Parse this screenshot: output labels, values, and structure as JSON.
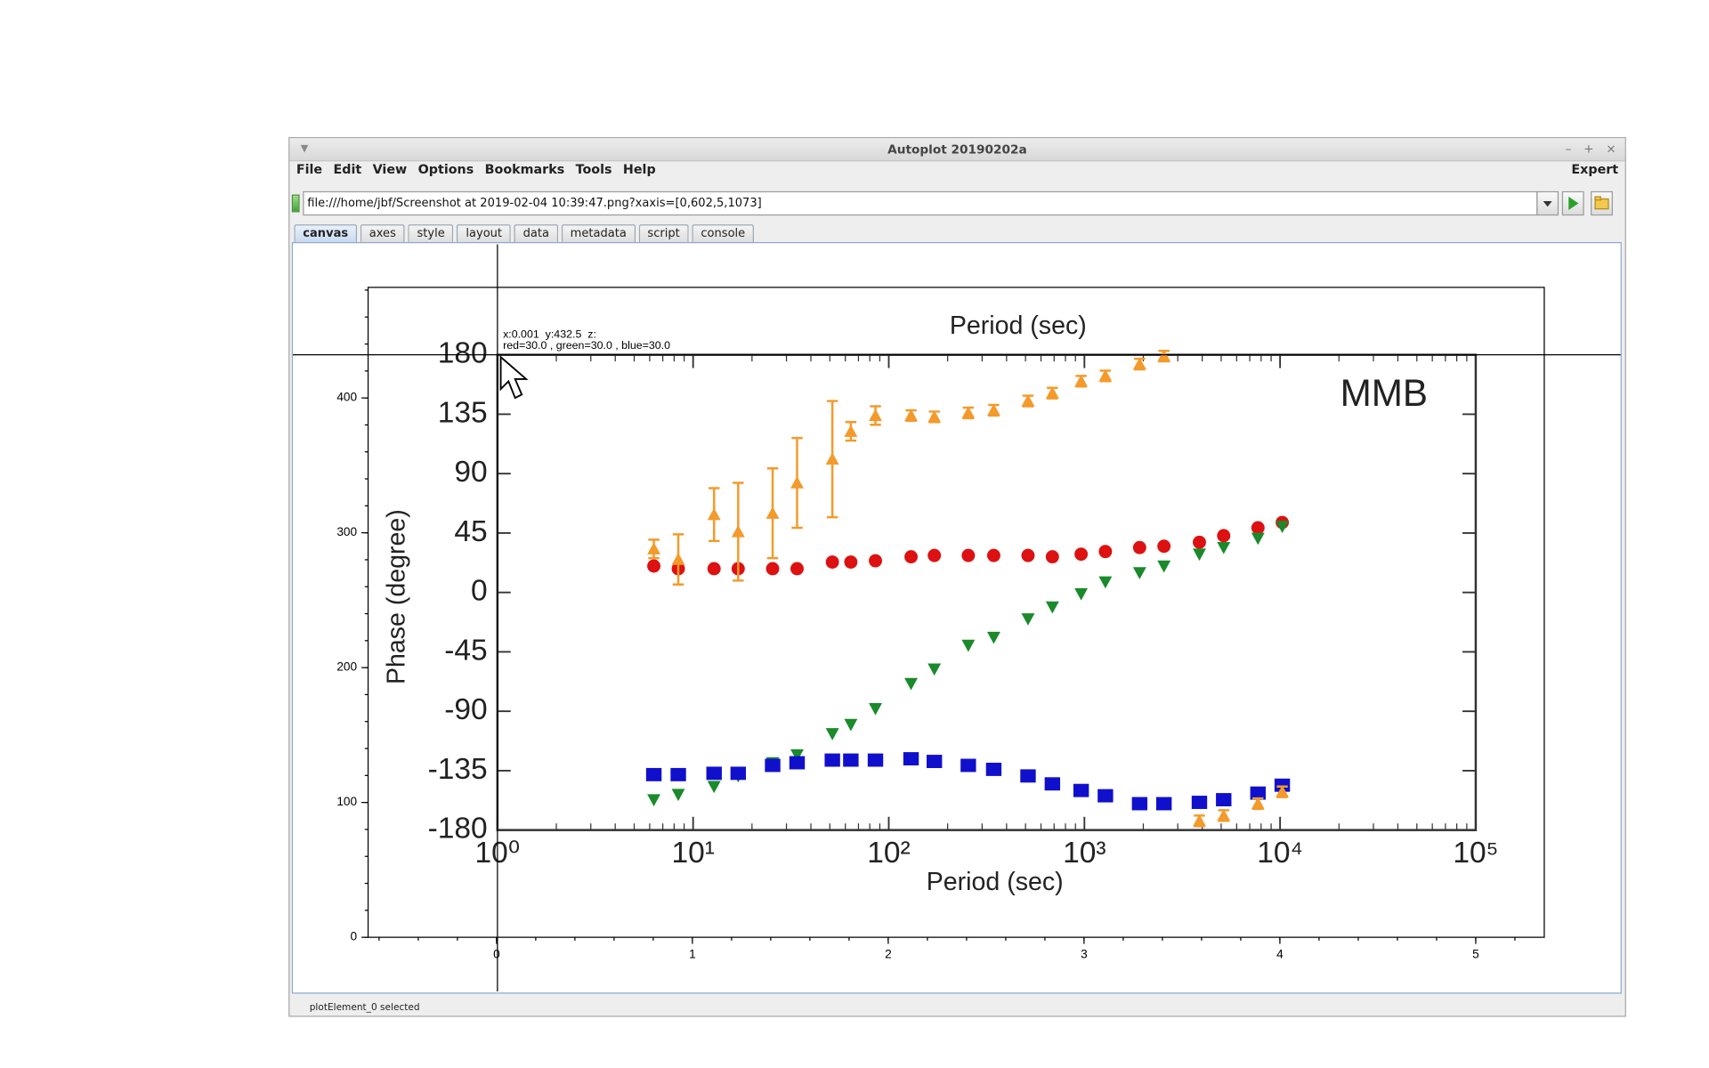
{
  "window": {
    "title": "Autoplot 20190202a",
    "controls": [
      "–",
      "+",
      "×"
    ]
  },
  "menu": [
    "File",
    "Edit",
    "View",
    "Options",
    "Bookmarks",
    "Tools",
    "Help"
  ],
  "mode": "Expert",
  "address": "file:///home/jbf/Screenshot at 2019-02-04 10:39:47.png?xaxis=[0,602,5,1073]",
  "tabs": [
    "canvas",
    "axes",
    "style",
    "layout",
    "data",
    "metadata",
    "script",
    "console"
  ],
  "active_tab": 0,
  "readout": [
    "x:0.001  y:432.5  z:",
    "red=30.0 , green=30.0 , blue=30.0"
  ],
  "status": "plotElement_0 selected",
  "chart_data": [
    {
      "type": "image",
      "xlim": [
        -0.656,
        5.35
      ],
      "ylim": [
        0,
        482
      ],
      "xticks": [
        0,
        1,
        2,
        3,
        4,
        5
      ],
      "yticks": [
        0,
        100,
        200,
        300,
        400
      ]
    },
    {
      "type": "scatter",
      "title": "MMB",
      "xlabel": "Period (sec)",
      "x2label": "Period (sec)",
      "ylabel": "Phase (degree)",
      "log_x": true,
      "xlim": [
        1,
        100000
      ],
      "ylim": [
        -180,
        180
      ],
      "xticks": [
        {
          "value": 1,
          "label": "10⁰"
        },
        {
          "value": 10,
          "label": "10¹"
        },
        {
          "value": 100,
          "label": "10²"
        },
        {
          "value": 1000,
          "label": "10³"
        },
        {
          "value": 10000,
          "label": "10⁴"
        },
        {
          "value": 100000,
          "label": "10⁵"
        }
      ],
      "yticks": [
        180,
        135,
        90,
        45,
        0,
        -45,
        -90,
        -135,
        -180
      ],
      "x": [
        6.3,
        8.4,
        12.8,
        17,
        25.5,
        34,
        51.5,
        64,
        85.5,
        130,
        171,
        255,
        344,
        515,
        686,
        962,
        1280,
        1915,
        2550,
        3870,
        5150,
        7710,
        10260
      ],
      "series": [
        {
          "color": "#dd1111",
          "marker": "circle",
          "values": [
            20,
            18,
            18,
            18,
            18,
            18,
            23,
            23,
            24,
            27,
            28,
            28,
            28,
            28,
            27,
            29,
            31,
            34,
            35,
            38,
            43,
            49,
            53
          ]
        },
        {
          "color": "#1a8a2a",
          "marker": "triangle-down",
          "values": [
            -157,
            -153,
            -147,
            -139,
            -129,
            -123,
            -107,
            -100,
            -88,
            -69,
            -58,
            -40,
            -34,
            -20,
            -11,
            -1,
            8,
            15,
            20,
            29,
            34,
            41,
            50
          ]
        },
        {
          "color": "#1010cc",
          "marker": "square",
          "values": [
            -138,
            -138,
            -137,
            -137,
            -131,
            -129,
            -127,
            -127,
            -127,
            -126,
            -128,
            -131,
            -134,
            -139,
            -145,
            -150,
            -154,
            -160,
            -160,
            -159,
            -157,
            -152,
            -146
          ]
        },
        {
          "color": "#f39a2b",
          "marker": "triangle-up",
          "values": [
            33,
            25,
            59,
            46,
            60,
            83,
            101,
            122,
            134,
            134,
            133,
            136,
            138,
            145,
            151,
            160,
            164,
            173,
            179,
            -173,
            -169,
            -160,
            -151
          ],
          "errors": [
            7,
            19,
            20,
            37,
            34,
            34,
            44,
            7,
            7,
            4,
            4,
            4,
            4,
            4,
            4,
            4,
            4,
            4,
            4,
            4,
            4,
            4,
            4
          ]
        }
      ]
    }
  ]
}
